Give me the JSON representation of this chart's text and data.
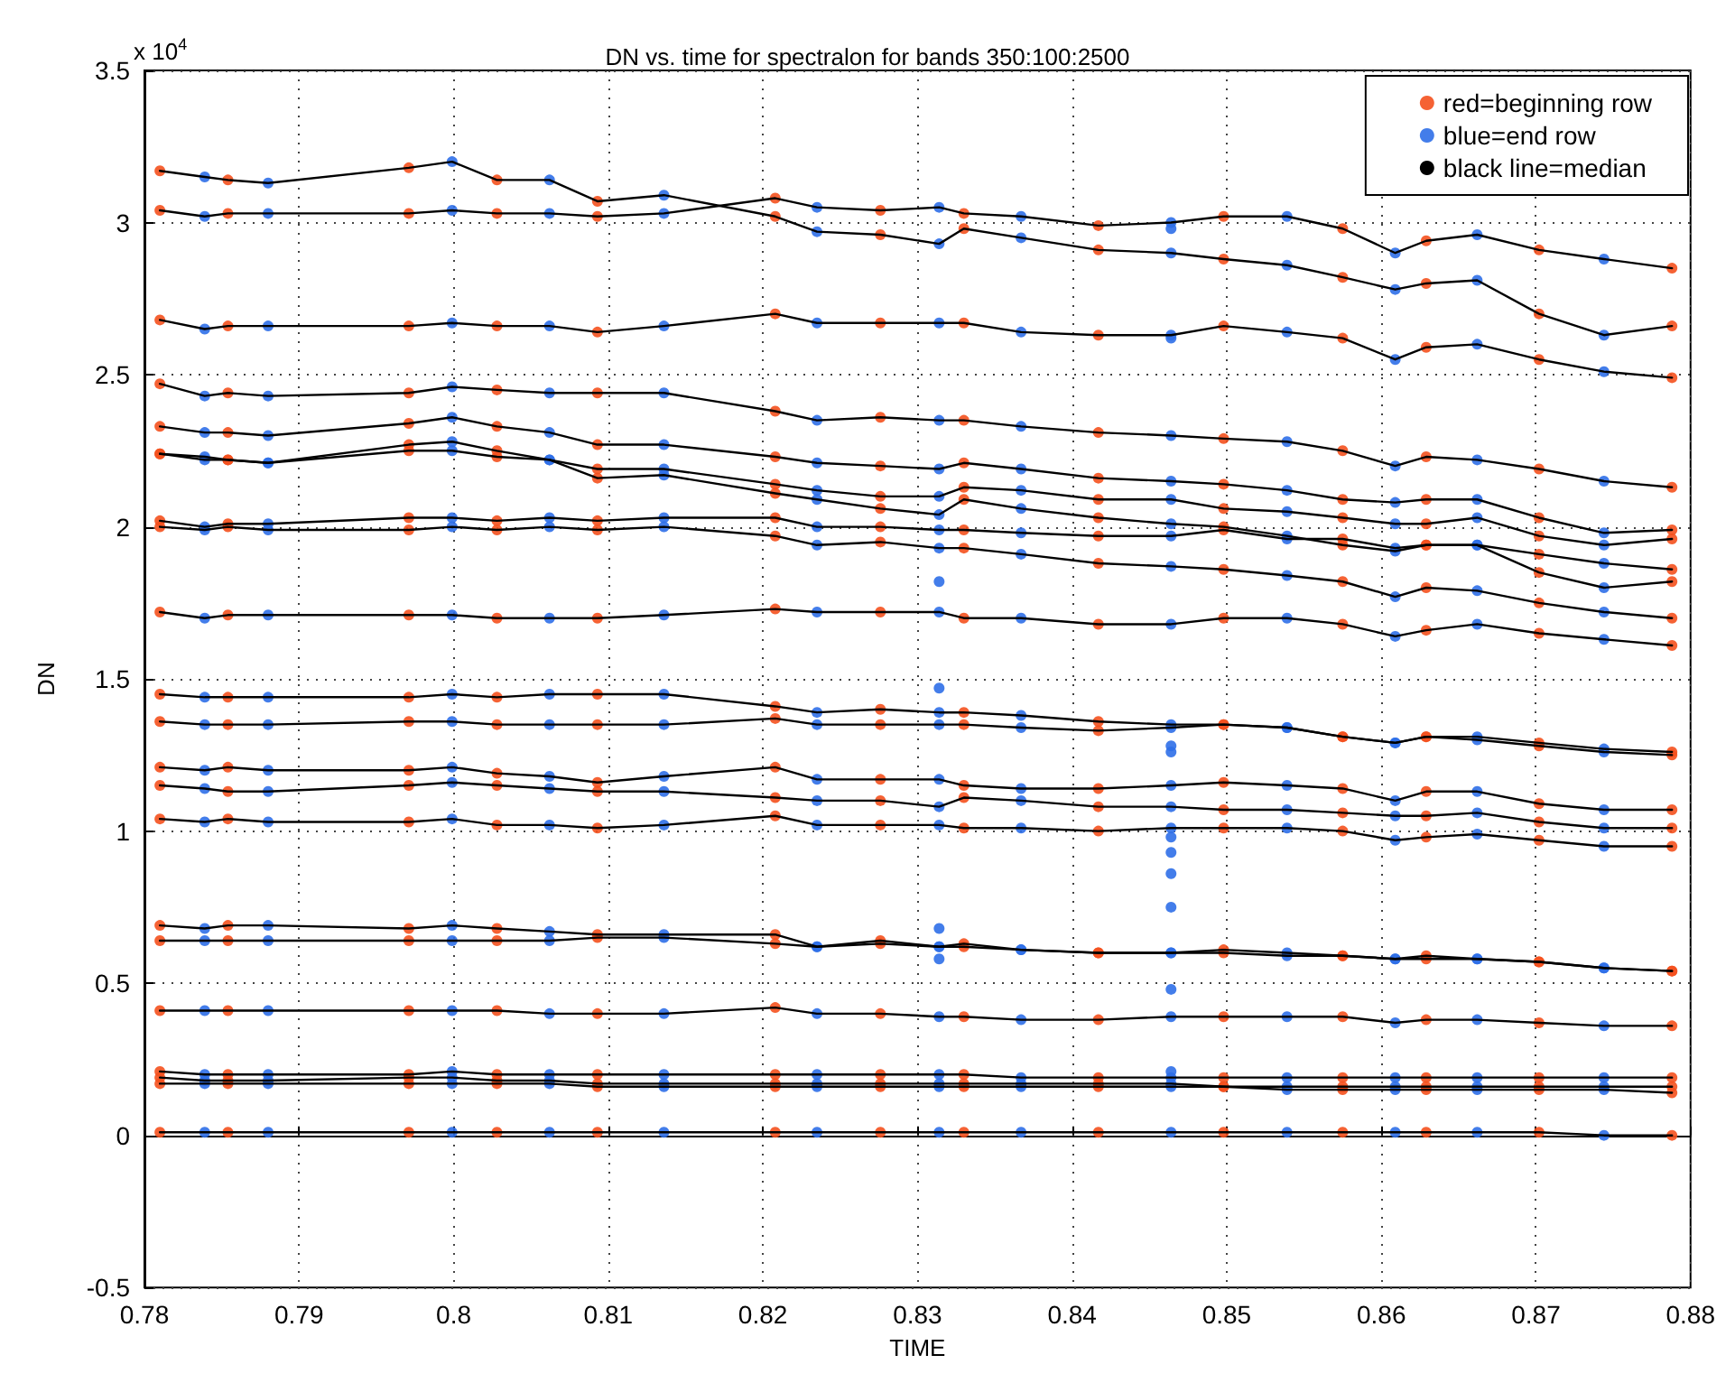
{
  "chart_data": {
    "type": "line",
    "title": "DN vs. time for spectralon for bands 350:100:2500",
    "xlabel": "TIME",
    "ylabel": "DN",
    "annotations": [
      "x 10$^{4}$"
    ],
    "xlim": [
      0.78,
      0.88
    ],
    "xticks": [
      0.78,
      0.79,
      0.8,
      0.81,
      0.82,
      0.83,
      0.84,
      0.85,
      0.86,
      0.87,
      0.88
    ],
    "ylim": [
      -0.5,
      3.5
    ],
    "yticks": [
      -0.5,
      0,
      0.5,
      1,
      1.5,
      2,
      2.5,
      3,
      3.5
    ],
    "grid": true,
    "legend": "top right",
    "x": [
      0.781,
      0.7839,
      0.7854,
      0.788,
      0.7971,
      0.7999,
      0.8028,
      0.8062,
      0.8093,
      0.8136,
      0.8208,
      0.8235,
      0.8276,
      0.8314,
      0.833,
      0.8367,
      0.8417,
      0.8464,
      0.8498,
      0.8539,
      0.8575,
      0.8609,
      0.8629,
      0.8662,
      0.8702,
      0.8744,
      0.8788
    ],
    "series": [
      {
        "name": "red=beginning row",
        "type": "scatter",
        "marker": "circle",
        "color": "#f4511e",
        "x": [
          0.781,
          0.7854,
          0.7971,
          0.8028,
          0.8093,
          0.8208,
          0.8276,
          0.833,
          0.8417,
          0.8498,
          0.8575,
          0.8629,
          0.8702,
          0.8788,
          0.781,
          0.7854,
          0.7971,
          0.8028,
          0.8093,
          0.8208,
          0.8276,
          0.833,
          0.8417,
          0.8498,
          0.8575,
          0.8629,
          0.8702,
          0.8788,
          0.781,
          0.7854,
          0.7971,
          0.8028,
          0.8093,
          0.8208,
          0.8276,
          0.833,
          0.8417,
          0.8498,
          0.8575,
          0.8629,
          0.8702,
          0.8788,
          0.781,
          0.7854,
          0.7971,
          0.8028,
          0.8093,
          0.8208,
          0.8276,
          0.833,
          0.8417,
          0.8498,
          0.8575,
          0.8629,
          0.8702,
          0.8788,
          0.781,
          0.7854,
          0.7971,
          0.8028,
          0.8093,
          0.8208,
          0.8276,
          0.833,
          0.8417,
          0.8498,
          0.8575,
          0.8629,
          0.8702,
          0.8788,
          0.781,
          0.7854,
          0.7971,
          0.8028,
          0.8093,
          0.8208,
          0.8276,
          0.833,
          0.8417,
          0.8498,
          0.8575,
          0.8629,
          0.8702,
          0.8788,
          0.781,
          0.7854,
          0.7971,
          0.8028,
          0.8093,
          0.8208,
          0.8276,
          0.833,
          0.8417,
          0.8498,
          0.8575,
          0.8629,
          0.8702,
          0.8788,
          0.781,
          0.7854,
          0.7971,
          0.8028,
          0.8093,
          0.8208,
          0.8276,
          0.833,
          0.8417,
          0.8498,
          0.8575,
          0.8629,
          0.8702,
          0.8788,
          0.781,
          0.7854,
          0.7971,
          0.8028,
          0.8093,
          0.8208,
          0.8276,
          0.833,
          0.8417,
          0.8498,
          0.8575,
          0.8629,
          0.8702,
          0.8788,
          0.781,
          0.7854,
          0.7971,
          0.8028,
          0.8093,
          0.8208,
          0.8276,
          0.833,
          0.8417,
          0.8498,
          0.8575,
          0.8629,
          0.8702,
          0.8788,
          0.781,
          0.7854,
          0.7971,
          0.8028,
          0.8093,
          0.8208,
          0.8276,
          0.833,
          0.8417,
          0.8498,
          0.8575,
          0.8629,
          0.8702,
          0.8788,
          0.781,
          0.7854,
          0.7971,
          0.8028,
          0.8093,
          0.8208,
          0.8276,
          0.833,
          0.8417,
          0.8498,
          0.8575,
          0.8629,
          0.8702,
          0.8788,
          0.781,
          0.7854,
          0.7971,
          0.8028,
          0.8093,
          0.8208,
          0.8276,
          0.833,
          0.8417,
          0.8498,
          0.8575,
          0.8629,
          0.8702,
          0.8788,
          0.781,
          0.7854,
          0.7971,
          0.8028,
          0.8093,
          0.8208,
          0.8276,
          0.833,
          0.8417,
          0.8498,
          0.8575,
          0.8629,
          0.8702,
          0.8788,
          0.781,
          0.7854,
          0.7971,
          0.8028,
          0.8093,
          0.8208,
          0.8276,
          0.833,
          0.8417,
          0.8498,
          0.8575,
          0.8629,
          0.8702,
          0.8788,
          0.781,
          0.7854,
          0.7971,
          0.8028,
          0.8093,
          0.8208,
          0.8276,
          0.833,
          0.8417,
          0.8498,
          0.8575,
          0.8629,
          0.8702,
          0.8788,
          0.781,
          0.7854,
          0.7971,
          0.8028,
          0.8093,
          0.8208,
          0.8276,
          0.833,
          0.8417,
          0.8498,
          0.8575,
          0.8629,
          0.8702,
          0.8788,
          0.781,
          0.7854,
          0.7971,
          0.8028,
          0.8093,
          0.8208,
          0.8276,
          0.833,
          0.8417,
          0.8498,
          0.8575,
          0.8629,
          0.8702,
          0.8788,
          0.781,
          0.7854,
          0.7971,
          0.8028,
          0.8093,
          0.8208,
          0.8276,
          0.833,
          0.8417,
          0.8498,
          0.8575,
          0.8629,
          0.8702,
          0.8788,
          0.781,
          0.7854,
          0.7971,
          0.8028,
          0.8093,
          0.8208,
          0.8276,
          0.833,
          0.8417,
          0.8498,
          0.8575,
          0.8629,
          0.8702,
          0.8788,
          0.781,
          0.7854,
          0.7971,
          0.8028,
          0.8093,
          0.8208,
          0.8276,
          0.833,
          0.8417,
          0.8498,
          0.8575,
          0.8629,
          0.8702,
          0.8788,
          0.781,
          0.7854,
          0.7971,
          0.8028,
          0.8093,
          0.8208,
          0.8276,
          0.833,
          0.8417,
          0.8498,
          0.8575,
          0.8629,
          0.8702,
          0.8788
        ],
        "values": [
          3.17,
          3.14,
          3.18,
          3.14,
          3.07,
          3.02,
          2.96,
          2.98,
          2.91,
          2.88,
          2.82,
          2.8,
          2.7,
          2.66,
          3.04,
          3.03,
          3.03,
          3.03,
          3.02,
          3.08,
          3.04,
          3.03,
          2.99,
          3.02,
          2.98,
          2.94,
          2.91,
          2.85,
          2.68,
          2.66,
          2.66,
          2.66,
          2.64,
          2.7,
          2.67,
          2.67,
          2.63,
          2.66,
          2.62,
          2.59,
          2.55,
          2.49,
          2.47,
          2.44,
          2.44,
          2.45,
          2.44,
          2.38,
          2.36,
          2.35,
          2.31,
          2.29,
          2.25,
          2.23,
          2.19,
          2.13,
          2.33,
          2.31,
          2.34,
          2.33,
          2.27,
          2.23,
          2.2,
          2.21,
          2.16,
          2.14,
          2.09,
          2.09,
          2.03,
          1.99,
          2.24,
          2.22,
          2.27,
          2.25,
          2.19,
          2.14,
          2.1,
          2.13,
          2.09,
          2.06,
          2.03,
          2.01,
          1.97,
          1.96,
          2.24,
          2.22,
          2.25,
          2.23,
          2.16,
          2.11,
          2.06,
          2.09,
          2.03,
          2.0,
          1.94,
          1.94,
          1.91,
          1.86,
          2.02,
          2.01,
          2.03,
          2.02,
          2.02,
          2.03,
          2.0,
          1.99,
          1.97,
          1.99,
          1.96,
          1.94,
          1.85,
          1.82,
          2.0,
          2.0,
          1.99,
          1.99,
          1.99,
          1.97,
          1.95,
          1.93,
          1.88,
          1.86,
          1.82,
          1.8,
          1.75,
          1.7,
          1.72,
          1.71,
          1.71,
          1.7,
          1.7,
          1.73,
          1.72,
          1.7,
          1.68,
          1.7,
          1.68,
          1.66,
          1.65,
          1.61,
          1.45,
          1.44,
          1.44,
          1.44,
          1.45,
          1.41,
          1.4,
          1.39,
          1.36,
          1.35,
          1.31,
          1.31,
          1.29,
          1.26,
          1.36,
          1.35,
          1.36,
          1.35,
          1.35,
          1.37,
          1.35,
          1.35,
          1.33,
          1.35,
          1.31,
          1.31,
          1.28,
          1.25,
          1.21,
          1.21,
          1.2,
          1.19,
          1.16,
          1.21,
          1.17,
          1.15,
          1.14,
          1.16,
          1.14,
          1.13,
          1.09,
          1.07,
          1.15,
          1.13,
          1.15,
          1.15,
          1.13,
          1.11,
          1.1,
          1.11,
          1.08,
          1.07,
          1.06,
          1.05,
          1.03,
          1.01,
          1.04,
          1.04,
          1.03,
          1.02,
          1.01,
          1.05,
          1.02,
          1.01,
          1.0,
          1.01,
          1.0,
          0.98,
          0.97,
          0.95,
          0.69,
          0.69,
          0.68,
          0.68,
          0.66,
          0.66,
          0.64,
          0.63,
          0.6,
          0.61,
          0.59,
          0.59,
          0.57,
          0.54,
          0.64,
          0.64,
          0.64,
          0.64,
          0.65,
          0.63,
          0.63,
          0.62,
          0.6,
          0.6,
          0.59,
          0.58,
          0.57,
          0.54,
          0.41,
          0.41,
          0.41,
          0.41,
          0.4,
          0.42,
          0.4,
          0.39,
          0.38,
          0.39,
          0.39,
          0.38,
          0.37,
          0.36,
          0.21,
          0.2,
          0.2,
          0.2,
          0.2,
          0.2,
          0.2,
          0.2,
          0.19,
          0.19,
          0.19,
          0.19,
          0.19,
          0.19,
          0.19,
          0.18,
          0.19,
          0.18,
          0.17,
          0.17,
          0.17,
          0.17,
          0.17,
          0.16,
          0.16,
          0.16,
          0.16,
          0.16,
          0.17,
          0.17,
          0.17,
          0.17,
          0.16,
          0.16,
          0.16,
          0.16,
          0.16,
          0.16,
          0.15,
          0.15,
          0.15,
          0.14,
          0.01,
          0.01,
          0.01,
          0.01,
          0.01,
          0.01,
          0.01,
          0.01,
          0.01,
          0.01,
          0.01,
          0.01,
          0.01,
          0.0
        ]
      },
      {
        "name": "blue=end row",
        "type": "scatter",
        "marker": "circle",
        "color": "#2f6fe8",
        "x": [
          0.7839,
          0.788,
          0.7999,
          0.8062,
          0.8136,
          0.8235,
          0.8314,
          0.8367,
          0.8464,
          0.8539,
          0.8609,
          0.8662,
          0.8744,
          0.7839,
          0.788,
          0.7999,
          0.8062,
          0.8136,
          0.8235,
          0.8314,
          0.8367,
          0.8464,
          0.8539,
          0.8609,
          0.8662,
          0.8744,
          0.7839,
          0.788,
          0.7999,
          0.8062,
          0.8136,
          0.8235,
          0.8314,
          0.8367,
          0.8464,
          0.8539,
          0.8609,
          0.8662,
          0.8744,
          0.7839,
          0.788,
          0.7999,
          0.8062,
          0.8136,
          0.8235,
          0.8314,
          0.8367,
          0.8464,
          0.8539,
          0.8609,
          0.8662,
          0.8744,
          0.7839,
          0.788,
          0.7999,
          0.8062,
          0.8136,
          0.8235,
          0.8314,
          0.8367,
          0.8464,
          0.8539,
          0.8609,
          0.8662,
          0.8744,
          0.7839,
          0.788,
          0.7999,
          0.8062,
          0.8136,
          0.8235,
          0.8314,
          0.8367,
          0.8464,
          0.8539,
          0.8609,
          0.8662,
          0.8744,
          0.7839,
          0.788,
          0.7999,
          0.8062,
          0.8136,
          0.8235,
          0.8314,
          0.8367,
          0.8464,
          0.8539,
          0.8609,
          0.8662,
          0.8744,
          0.7839,
          0.788,
          0.7999,
          0.8062,
          0.8136,
          0.8235,
          0.8314,
          0.8367,
          0.8464,
          0.8539,
          0.8609,
          0.8662,
          0.8744,
          0.7839,
          0.788,
          0.7999,
          0.8062,
          0.8136,
          0.8235,
          0.8314,
          0.8367,
          0.8464,
          0.8539,
          0.8609,
          0.8662,
          0.8744,
          0.7839,
          0.788,
          0.7999,
          0.8062,
          0.8136,
          0.8235,
          0.8314,
          0.8367,
          0.8464,
          0.8539,
          0.8609,
          0.8662,
          0.8744,
          0.7839,
          0.788,
          0.7999,
          0.8062,
          0.8136,
          0.8235,
          0.8314,
          0.8367,
          0.8464,
          0.8539,
          0.8609,
          0.8662,
          0.8744,
          0.7839,
          0.788,
          0.7999,
          0.8062,
          0.8136,
          0.8235,
          0.8314,
          0.8367,
          0.8464,
          0.8539,
          0.8609,
          0.8662,
          0.8744,
          0.7839,
          0.788,
          0.7999,
          0.8062,
          0.8136,
          0.8235,
          0.8314,
          0.8367,
          0.8464,
          0.8539,
          0.8609,
          0.8662,
          0.8744,
          0.7839,
          0.788,
          0.7999,
          0.8062,
          0.8136,
          0.8235,
          0.8314,
          0.8367,
          0.8464,
          0.8539,
          0.8609,
          0.8662,
          0.8744,
          0.7839,
          0.788,
          0.7999,
          0.8062,
          0.8136,
          0.8235,
          0.8314,
          0.8367,
          0.8464,
          0.8539,
          0.8609,
          0.8662,
          0.8744,
          0.7839,
          0.788,
          0.7999,
          0.8062,
          0.8136,
          0.8235,
          0.8314,
          0.8367,
          0.8464,
          0.8539,
          0.8609,
          0.8662,
          0.8744,
          0.7839,
          0.788,
          0.7999,
          0.8062,
          0.8136,
          0.8235,
          0.8314,
          0.8367,
          0.8464,
          0.8539,
          0.8609,
          0.8662,
          0.8744,
          0.7839,
          0.788,
          0.7999,
          0.8062,
          0.8136,
          0.8235,
          0.8314,
          0.8367,
          0.8464,
          0.8539,
          0.8609,
          0.8662,
          0.8744,
          0.7839,
          0.788,
          0.7999,
          0.8062,
          0.8136,
          0.8235,
          0.8314,
          0.8367,
          0.8464,
          0.8539,
          0.8609,
          0.8662,
          0.8744,
          0.7839,
          0.788,
          0.7999,
          0.8062,
          0.8136,
          0.8235,
          0.8314,
          0.8367,
          0.8464,
          0.8539,
          0.8609,
          0.8662,
          0.8744,
          0.7839,
          0.788,
          0.7999,
          0.8062,
          0.8136,
          0.8235,
          0.8314,
          0.8367,
          0.8464,
          0.8539,
          0.8609,
          0.8662,
          0.8744,
          0.7839,
          0.788,
          0.7999,
          0.8062,
          0.8136,
          0.8235,
          0.8314,
          0.8367,
          0.8464,
          0.8539,
          0.8609,
          0.8662,
          0.8744,
          0.8314,
          0.8314,
          0.8314,
          0.8314,
          0.8464,
          0.8464,
          0.8464,
          0.8464,
          0.8464,
          0.8464,
          0.8464,
          0.8464,
          0.8464,
          0.8464
        ],
        "values": [
          3.15,
          3.13,
          3.2,
          3.14,
          3.09,
          2.97,
          2.93,
          2.95,
          2.9,
          2.86,
          2.78,
          2.81,
          2.63,
          3.02,
          3.03,
          3.04,
          3.03,
          3.03,
          3.05,
          3.05,
          3.02,
          3.0,
          3.02,
          2.9,
          2.96,
          2.88,
          2.65,
          2.66,
          2.67,
          2.66,
          2.66,
          2.67,
          2.67,
          2.64,
          2.63,
          2.64,
          2.55,
          2.6,
          2.51,
          2.43,
          2.43,
          2.46,
          2.44,
          2.44,
          2.35,
          2.35,
          2.33,
          2.3,
          2.28,
          2.2,
          2.22,
          2.15,
          2.31,
          2.3,
          2.36,
          2.31,
          2.27,
          2.21,
          2.19,
          2.19,
          2.15,
          2.12,
          2.08,
          2.09,
          1.98,
          2.23,
          2.21,
          2.28,
          2.22,
          2.19,
          2.12,
          2.1,
          2.12,
          2.09,
          2.05,
          2.01,
          2.03,
          1.94,
          2.22,
          2.21,
          2.25,
          2.22,
          2.17,
          2.09,
          2.04,
          2.06,
          2.01,
          1.97,
          1.92,
          1.94,
          1.88,
          2.0,
          2.01,
          2.03,
          2.03,
          2.03,
          2.0,
          1.99,
          1.98,
          1.97,
          1.96,
          1.93,
          1.94,
          1.8,
          1.99,
          1.99,
          2.0,
          2.0,
          2.0,
          1.94,
          1.93,
          1.91,
          1.87,
          1.84,
          1.77,
          1.79,
          1.72,
          1.7,
          1.71,
          1.71,
          1.7,
          1.71,
          1.72,
          1.72,
          1.7,
          1.68,
          1.7,
          1.64,
          1.68,
          1.63,
          1.44,
          1.44,
          1.45,
          1.45,
          1.45,
          1.39,
          1.39,
          1.38,
          1.35,
          1.34,
          1.29,
          1.31,
          1.27,
          1.35,
          1.35,
          1.36,
          1.35,
          1.35,
          1.35,
          1.35,
          1.34,
          1.34,
          1.34,
          1.29,
          1.3,
          1.26,
          1.2,
          1.2,
          1.21,
          1.18,
          1.18,
          1.17,
          1.17,
          1.14,
          1.15,
          1.15,
          1.1,
          1.13,
          1.07,
          1.14,
          1.13,
          1.16,
          1.14,
          1.13,
          1.1,
          1.08,
          1.1,
          1.08,
          1.07,
          1.05,
          1.06,
          1.01,
          1.03,
          1.03,
          1.04,
          1.02,
          1.02,
          1.02,
          1.02,
          1.01,
          1.01,
          1.01,
          0.97,
          0.99,
          0.95,
          0.68,
          0.69,
          0.69,
          0.67,
          0.66,
          0.62,
          0.62,
          0.61,
          0.6,
          0.6,
          0.58,
          0.58,
          0.55,
          0.64,
          0.64,
          0.64,
          0.64,
          0.65,
          0.62,
          0.62,
          0.61,
          0.6,
          0.59,
          0.58,
          0.58,
          0.55,
          0.41,
          0.41,
          0.41,
          0.4,
          0.4,
          0.4,
          0.39,
          0.38,
          0.39,
          0.39,
          0.37,
          0.38,
          0.36,
          0.2,
          0.2,
          0.21,
          0.2,
          0.2,
          0.2,
          0.2,
          0.19,
          0.19,
          0.19,
          0.19,
          0.19,
          0.19,
          0.18,
          0.18,
          0.19,
          0.18,
          0.17,
          0.17,
          0.17,
          0.17,
          0.17,
          0.16,
          0.16,
          0.16,
          0.16,
          0.17,
          0.17,
          0.17,
          0.17,
          0.16,
          0.16,
          0.16,
          0.16,
          0.16,
          0.15,
          0.15,
          0.15,
          0.15,
          0.01,
          0.01,
          0.01,
          0.01,
          0.01,
          0.01,
          0.01,
          0.01,
          0.01,
          0.01,
          0.01,
          0.01,
          0.0,
          1.82,
          1.47,
          0.68,
          0.58,
          2.98,
          2.62,
          1.28,
          1.26,
          0.98,
          0.93,
          0.86,
          0.75,
          0.48,
          0.21
        ]
      },
      {
        "name": "black line=median",
        "color": "#000000",
        "values": [
          3.17,
          3.15,
          3.14,
          3.13,
          3.18,
          3.2,
          3.14,
          3.14,
          3.07,
          3.09,
          3.02,
          2.97,
          2.96,
          2.93,
          2.98,
          2.95,
          2.91,
          2.9,
          2.88,
          2.86,
          2.82,
          2.78,
          2.8,
          2.81,
          2.7,
          2.63,
          2.66
        ]
      },
      {
        "color": "#000000",
        "values": [
          3.04,
          3.02,
          3.03,
          3.03,
          3.03,
          3.04,
          3.03,
          3.03,
          3.02,
          3.03,
          3.08,
          3.05,
          3.04,
          3.05,
          3.03,
          3.02,
          2.99,
          3.0,
          3.02,
          3.02,
          2.98,
          2.9,
          2.94,
          2.96,
          2.91,
          2.88,
          2.85
        ]
      },
      {
        "color": "#000000",
        "values": [
          2.68,
          2.65,
          2.66,
          2.66,
          2.66,
          2.67,
          2.66,
          2.66,
          2.64,
          2.66,
          2.7,
          2.67,
          2.67,
          2.67,
          2.67,
          2.64,
          2.63,
          2.63,
          2.66,
          2.64,
          2.62,
          2.55,
          2.59,
          2.6,
          2.55,
          2.51,
          2.49
        ]
      },
      {
        "color": "#000000",
        "values": [
          2.47,
          2.43,
          2.44,
          2.43,
          2.44,
          2.46,
          2.45,
          2.44,
          2.44,
          2.44,
          2.38,
          2.35,
          2.36,
          2.35,
          2.35,
          2.33,
          2.31,
          2.3,
          2.29,
          2.28,
          2.25,
          2.2,
          2.23,
          2.22,
          2.19,
          2.15,
          2.13
        ]
      },
      {
        "color": "#000000",
        "values": [
          2.33,
          2.31,
          2.31,
          2.3,
          2.34,
          2.36,
          2.33,
          2.31,
          2.27,
          2.27,
          2.23,
          2.21,
          2.2,
          2.19,
          2.21,
          2.19,
          2.16,
          2.15,
          2.14,
          2.12,
          2.09,
          2.08,
          2.09,
          2.09,
          2.03,
          1.98,
          1.99
        ]
      },
      {
        "color": "#000000",
        "values": [
          2.24,
          2.23,
          2.22,
          2.21,
          2.27,
          2.28,
          2.25,
          2.22,
          2.19,
          2.19,
          2.14,
          2.12,
          2.1,
          2.1,
          2.13,
          2.12,
          2.09,
          2.09,
          2.06,
          2.05,
          2.03,
          2.01,
          2.01,
          2.03,
          1.97,
          1.94,
          1.96
        ]
      },
      {
        "color": "#000000",
        "values": [
          2.24,
          2.22,
          2.22,
          2.21,
          2.25,
          2.25,
          2.23,
          2.22,
          2.16,
          2.17,
          2.11,
          2.09,
          2.06,
          2.04,
          2.09,
          2.06,
          2.03,
          2.01,
          2.0,
          1.97,
          1.94,
          1.92,
          1.94,
          1.94,
          1.91,
          1.88,
          1.86
        ]
      },
      {
        "color": "#000000",
        "values": [
          2.02,
          2.0,
          2.01,
          2.01,
          2.03,
          2.03,
          2.02,
          2.03,
          2.02,
          2.03,
          2.03,
          2.0,
          2.0,
          1.99,
          1.99,
          1.98,
          1.97,
          1.97,
          1.99,
          1.96,
          1.96,
          1.93,
          1.94,
          1.94,
          1.85,
          1.8,
          1.82
        ]
      },
      {
        "color": "#000000",
        "values": [
          2.0,
          1.99,
          2.0,
          1.99,
          1.99,
          2.0,
          1.99,
          2.0,
          1.99,
          2.0,
          1.97,
          1.94,
          1.95,
          1.93,
          1.93,
          1.91,
          1.88,
          1.87,
          1.86,
          1.84,
          1.82,
          1.77,
          1.8,
          1.79,
          1.75,
          1.72,
          1.7
        ]
      },
      {
        "color": "#000000",
        "values": [
          1.72,
          1.7,
          1.71,
          1.71,
          1.71,
          1.71,
          1.7,
          1.7,
          1.7,
          1.71,
          1.73,
          1.72,
          1.72,
          1.72,
          1.7,
          1.7,
          1.68,
          1.68,
          1.7,
          1.7,
          1.68,
          1.64,
          1.66,
          1.68,
          1.65,
          1.63,
          1.61
        ]
      },
      {
        "color": "#000000",
        "values": [
          1.45,
          1.44,
          1.44,
          1.44,
          1.44,
          1.45,
          1.44,
          1.45,
          1.45,
          1.45,
          1.41,
          1.39,
          1.4,
          1.39,
          1.39,
          1.38,
          1.36,
          1.35,
          1.35,
          1.34,
          1.31,
          1.29,
          1.31,
          1.31,
          1.29,
          1.27,
          1.26
        ]
      },
      {
        "color": "#000000",
        "values": [
          1.36,
          1.35,
          1.35,
          1.35,
          1.36,
          1.36,
          1.35,
          1.35,
          1.35,
          1.35,
          1.37,
          1.35,
          1.35,
          1.35,
          1.35,
          1.34,
          1.33,
          1.34,
          1.35,
          1.34,
          1.31,
          1.29,
          1.31,
          1.3,
          1.28,
          1.26,
          1.25
        ]
      },
      {
        "color": "#000000",
        "values": [
          1.21,
          1.2,
          1.21,
          1.2,
          1.2,
          1.21,
          1.19,
          1.18,
          1.16,
          1.18,
          1.21,
          1.17,
          1.17,
          1.17,
          1.15,
          1.14,
          1.14,
          1.15,
          1.16,
          1.15,
          1.14,
          1.1,
          1.13,
          1.13,
          1.09,
          1.07,
          1.07
        ]
      },
      {
        "color": "#000000",
        "values": [
          1.15,
          1.14,
          1.13,
          1.13,
          1.15,
          1.16,
          1.15,
          1.14,
          1.13,
          1.13,
          1.11,
          1.1,
          1.1,
          1.08,
          1.11,
          1.1,
          1.08,
          1.08,
          1.07,
          1.07,
          1.06,
          1.05,
          1.05,
          1.06,
          1.03,
          1.01,
          1.01
        ]
      },
      {
        "color": "#000000",
        "values": [
          1.04,
          1.03,
          1.04,
          1.03,
          1.03,
          1.04,
          1.02,
          1.02,
          1.01,
          1.02,
          1.05,
          1.02,
          1.02,
          1.02,
          1.01,
          1.01,
          1.0,
          1.01,
          1.01,
          1.01,
          1.0,
          0.97,
          0.98,
          0.99,
          0.97,
          0.95,
          0.95
        ]
      },
      {
        "color": "#000000",
        "values": [
          0.69,
          0.68,
          0.69,
          0.69,
          0.68,
          0.69,
          0.68,
          0.67,
          0.66,
          0.66,
          0.66,
          0.62,
          0.64,
          0.62,
          0.63,
          0.61,
          0.6,
          0.6,
          0.61,
          0.6,
          0.59,
          0.58,
          0.59,
          0.58,
          0.57,
          0.55,
          0.54
        ]
      },
      {
        "color": "#000000",
        "values": [
          0.64,
          0.64,
          0.64,
          0.64,
          0.64,
          0.64,
          0.64,
          0.64,
          0.65,
          0.65,
          0.63,
          0.62,
          0.63,
          0.62,
          0.62,
          0.61,
          0.6,
          0.6,
          0.6,
          0.59,
          0.59,
          0.58,
          0.58,
          0.58,
          0.57,
          0.55,
          0.54
        ]
      },
      {
        "color": "#000000",
        "values": [
          0.41,
          0.41,
          0.41,
          0.41,
          0.41,
          0.41,
          0.41,
          0.4,
          0.4,
          0.4,
          0.42,
          0.4,
          0.4,
          0.39,
          0.39,
          0.38,
          0.38,
          0.39,
          0.39,
          0.39,
          0.39,
          0.37,
          0.38,
          0.38,
          0.37,
          0.36,
          0.36
        ]
      },
      {
        "color": "#000000",
        "values": [
          0.21,
          0.2,
          0.2,
          0.2,
          0.2,
          0.21,
          0.2,
          0.2,
          0.2,
          0.2,
          0.2,
          0.2,
          0.2,
          0.2,
          0.2,
          0.19,
          0.19,
          0.19,
          0.19,
          0.19,
          0.19,
          0.19,
          0.19,
          0.19,
          0.19,
          0.19,
          0.19
        ]
      },
      {
        "color": "#000000",
        "values": [
          0.19,
          0.18,
          0.18,
          0.18,
          0.19,
          0.19,
          0.18,
          0.18,
          0.17,
          0.17,
          0.17,
          0.17,
          0.17,
          0.17,
          0.17,
          0.17,
          0.17,
          0.17,
          0.16,
          0.16,
          0.16,
          0.16,
          0.16,
          0.16,
          0.16,
          0.16,
          0.16
        ]
      },
      {
        "color": "#000000",
        "values": [
          0.17,
          0.17,
          0.17,
          0.17,
          0.17,
          0.17,
          0.17,
          0.17,
          0.16,
          0.16,
          0.16,
          0.16,
          0.16,
          0.16,
          0.16,
          0.16,
          0.16,
          0.16,
          0.16,
          0.15,
          0.15,
          0.15,
          0.15,
          0.15,
          0.15,
          0.15,
          0.14
        ]
      },
      {
        "color": "#000000",
        "values": [
          0.01,
          0.01,
          0.01,
          0.01,
          0.01,
          0.01,
          0.01,
          0.01,
          0.01,
          0.01,
          0.01,
          0.01,
          0.01,
          0.01,
          0.01,
          0.01,
          0.01,
          0.01,
          0.01,
          0.01,
          0.01,
          0.01,
          0.01,
          0.01,
          0.01,
          0.0,
          0.0
        ]
      }
    ]
  }
}
